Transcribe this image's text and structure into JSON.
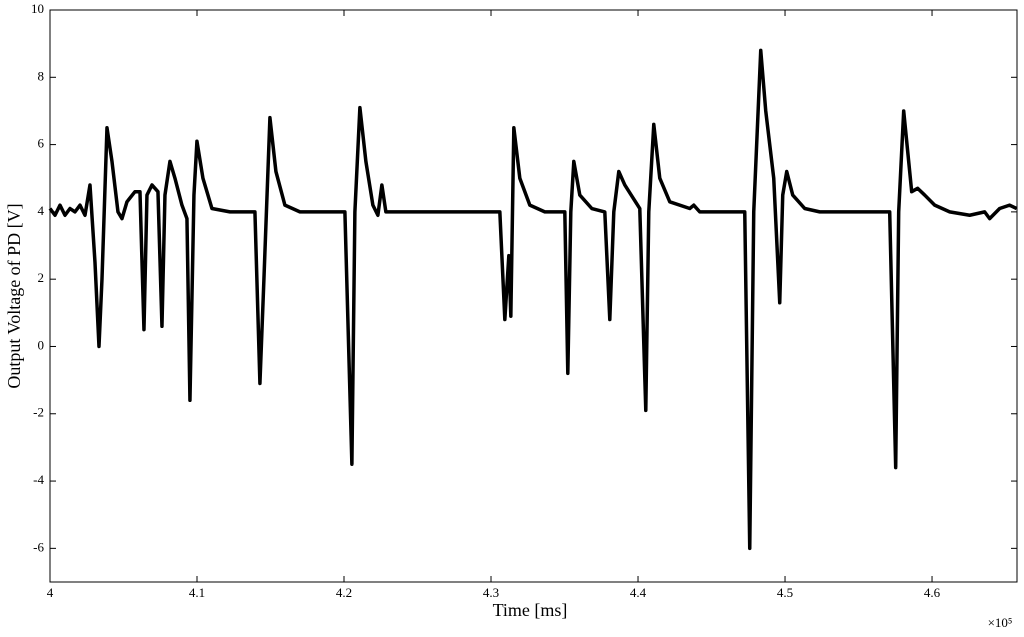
{
  "chart_data": {
    "type": "line",
    "x_label": "Time [ms]",
    "y_label": "Output Voltage of PD [V]",
    "x_multiplier": "×10⁵",
    "xlim": [
      400000,
      465780
    ],
    "ylim": [
      -7,
      10
    ],
    "xticks": [
      {
        "value": 400000,
        "label": "4"
      },
      {
        "value": 410000,
        "label": "4.1"
      },
      {
        "value": 420000,
        "label": "4.2"
      },
      {
        "value": 430000,
        "label": "4.3"
      },
      {
        "value": 440000,
        "label": "4.4"
      },
      {
        "value": 450000,
        "label": "4.5"
      },
      {
        "value": 460000,
        "label": "4.6"
      }
    ],
    "yticks": [
      -6,
      -4,
      -2,
      0,
      2,
      4,
      6,
      8,
      10
    ],
    "grid": false,
    "series": [
      {
        "color": "#000000",
        "x": [
          400000,
          400340,
          400680,
          401020,
          401360,
          401700,
          402040,
          402380,
          402720,
          403060,
          403332,
          403536,
          403876,
          404216,
          404624,
          404896,
          405236,
          405780,
          406120,
          406392,
          406596,
          406936,
          407344,
          407616,
          407820,
          408160,
          408500,
          408976,
          409316,
          409520,
          409792,
          409996,
          410404,
          411016,
          412240,
          413940,
          414280,
          414552,
          414960,
          415368,
          415980,
          417000,
          420060,
          420536,
          420740,
          421080,
          421488,
          421964,
          422304,
          422576,
          422848,
          423800,
          430600,
          430940,
          431212,
          431348,
          431552,
          431960,
          432640,
          433660,
          435020,
          435224,
          435428,
          435632,
          436040,
          436856,
          437740,
          438080,
          438352,
          438692,
          439100,
          440120,
          440528,
          440732,
          441072,
          441480,
          442160,
          443520,
          443792,
          444200,
          447260,
          447600,
          447872,
          448348,
          448688,
          449232,
          449640,
          449844,
          450116,
          450524,
          451340,
          452360,
          457120,
          457528,
          457732,
          458072,
          458412,
          458616,
          459024,
          459500,
          460180,
          461200,
          462560,
          463580,
          463920,
          464600,
          465280,
          465756
        ],
        "values": [
          4.1,
          3.9,
          4.2,
          3.9,
          4.1,
          4.0,
          4.2,
          3.9,
          4.8,
          2.5,
          0,
          2,
          6.5,
          5.5,
          4,
          3.8,
          4.3,
          4.6,
          4.6,
          0.5,
          4.5,
          4.8,
          4.6,
          0.6,
          4.5,
          5.5,
          5,
          4.2,
          3.8,
          -1.6,
          4.5,
          6.1,
          5,
          4.1,
          4.0,
          4,
          -1.1,
          2,
          6.8,
          5.2,
          4.2,
          4.0,
          4,
          -3.5,
          4,
          7.1,
          5.5,
          4.2,
          3.9,
          4.8,
          4,
          4,
          4,
          0.8,
          2.7,
          0.9,
          6.5,
          5,
          4.2,
          4,
          4,
          -0.8,
          4,
          5.5,
          4.5,
          4.1,
          4,
          0.8,
          4,
          5.2,
          4.8,
          4.1,
          -1.9,
          4,
          6.6,
          5,
          4.3,
          4.1,
          4.2,
          4,
          4,
          -6,
          4,
          8.8,
          7,
          5,
          1.3,
          4.5,
          5.2,
          4.5,
          4.1,
          4,
          4,
          -3.6,
          4,
          7,
          5.5,
          4.6,
          4.7,
          4.5,
          4.2,
          4,
          3.9,
          4.0,
          3.8,
          4.1,
          4.2,
          4.1
        ]
      }
    ]
  }
}
